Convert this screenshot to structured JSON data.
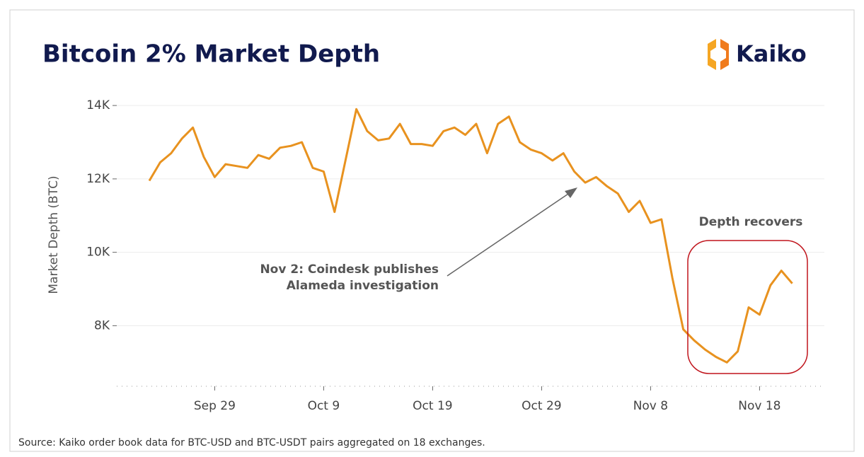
{
  "chart_data": {
    "type": "line",
    "title": "Bitcoin 2% Market Depth",
    "brand": "Kaiko",
    "y_label": "Market Depth (BTC)",
    "source": "Source: Kaiko order book data for BTC-USD and BTC-USDT pairs aggregated on 18 exchanges.",
    "annotations": [
      "Nov 2: Coindesk publishes",
      "Alameda investigation",
      "Depth recovers"
    ],
    "x": [
      "Sep 23",
      "Sep 24",
      "Sep 25",
      "Sep 26",
      "Sep 27",
      "Sep 28",
      "Sep 29",
      "Sep 30",
      "Oct 1",
      "Oct 2",
      "Oct 3",
      "Oct 4",
      "Oct 5",
      "Oct 6",
      "Oct 7",
      "Oct 8",
      "Oct 9",
      "Oct 10",
      "Oct 11",
      "Oct 12",
      "Oct 13",
      "Oct 14",
      "Oct 15",
      "Oct 16",
      "Oct 17",
      "Oct 18",
      "Oct 19",
      "Oct 20",
      "Oct 21",
      "Oct 22",
      "Oct 23",
      "Oct 24",
      "Oct 25",
      "Oct 26",
      "Oct 27",
      "Oct 28",
      "Oct 29",
      "Oct 30",
      "Oct 31",
      "Nov 1",
      "Nov 2",
      "Nov 3",
      "Nov 4",
      "Nov 5",
      "Nov 6",
      "Nov 7",
      "Nov 8",
      "Nov 9",
      "Nov 10",
      "Nov 11",
      "Nov 12",
      "Nov 13",
      "Nov 14",
      "Nov 15",
      "Nov 16",
      "Nov 17",
      "Nov 18",
      "Nov 19",
      "Nov 20",
      "Nov 21"
    ],
    "xticks": [
      "Sep 29",
      "Oct 9",
      "Oct 19",
      "Oct 29",
      "Nov 8",
      "Nov 18"
    ],
    "series": [
      {
        "name": "Market Depth",
        "color": "#e8921f",
        "values": [
          11950,
          12450,
          12700,
          13100,
          13400,
          12600,
          12050,
          12400,
          12350,
          12300,
          12650,
          12550,
          12850,
          12900,
          13000,
          12300,
          12200,
          11100,
          12500,
          13900,
          13300,
          13050,
          13100,
          13500,
          12950,
          12950,
          12900,
          13300,
          13400,
          13200,
          13500,
          12700,
          13500,
          13700,
          13000,
          12800,
          12700,
          12500,
          12700,
          12200,
          11900,
          12050,
          11800,
          11600,
          11100,
          11400,
          10800,
          10900,
          9300,
          7900,
          7600,
          7350,
          7150,
          7000,
          7300,
          8500,
          8300,
          9100,
          9500,
          9150
        ]
      }
    ],
    "ylim": [
      6350,
      14600
    ],
    "yticks": [
      {
        "value": 8000,
        "label": "8K"
      },
      {
        "value": 10000,
        "label": "10K"
      },
      {
        "value": 12000,
        "label": "12K"
      },
      {
        "value": 14000,
        "label": "14K"
      }
    ],
    "grid": true
  }
}
